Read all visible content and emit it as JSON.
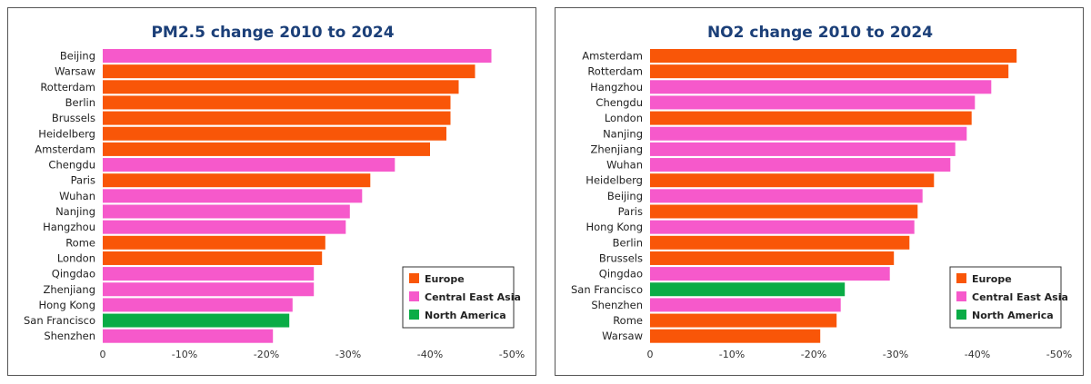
{
  "colors": {
    "Europe": "#f95608",
    "Central East Asia": "#f659cb",
    "North America": "#0aac46",
    "title": "#1b3f78"
  },
  "chart_data": [
    {
      "type": "bar",
      "title": "PM2.5 change 2010 to 2024",
      "xlim": [
        0,
        -50
      ],
      "xticks": [
        "0",
        "-10%",
        "-20%",
        "-30%",
        "-40%",
        "-50%"
      ],
      "legend": [
        "Europe",
        "Central East Asia",
        "North America"
      ],
      "legend_position": "bottom-right",
      "categories": [
        "Beijing",
        "Warsaw",
        "Rotterdam",
        "Berlin",
        "Brussels",
        "Heidelberg",
        "Amsterdam",
        "Chengdu",
        "Paris",
        "Wuhan",
        "Nanjing",
        "Hangzhou",
        "Rome",
        "London",
        "Qingdao",
        "Zhenjiang",
        "Hong Kong",
        "San Francisco",
        "Shenzhen"
      ],
      "regions": [
        "Central East Asia",
        "Europe",
        "Europe",
        "Europe",
        "Europe",
        "Europe",
        "Europe",
        "Central East Asia",
        "Europe",
        "Central East Asia",
        "Central East Asia",
        "Central East Asia",
        "Europe",
        "Europe",
        "Central East Asia",
        "Central East Asia",
        "Central East Asia",
        "North America",
        "Central East Asia"
      ],
      "values": [
        -47.5,
        -45.5,
        -43.5,
        -42.5,
        -42.5,
        -42,
        -40,
        -35.7,
        -32.7,
        -31.7,
        -30.2,
        -29.7,
        -27.2,
        -26.8,
        -25.8,
        -25.8,
        -23.2,
        -22.8,
        -20.8
      ]
    },
    {
      "type": "bar",
      "title": "NO2 change 2010 to 2024",
      "xlim": [
        0,
        -50
      ],
      "xticks": [
        "0",
        "-10%",
        "-20%",
        "-30%",
        "-40%",
        "-50%"
      ],
      "legend": [
        "Europe",
        "Central East Asia",
        "North America"
      ],
      "legend_position": "bottom-right",
      "categories": [
        "Amsterdam",
        "Rotterdam",
        "Hangzhou",
        "Chengdu",
        "London",
        "Nanjing",
        "Zhenjiang",
        "Wuhan",
        "Heidelberg",
        "Beijing",
        "Paris",
        "Hong Kong",
        "Berlin",
        "Brussels",
        "Qingdao",
        "San Francisco",
        "Shenzhen",
        "Rome",
        "Warsaw"
      ],
      "regions": [
        "Europe",
        "Europe",
        "Central East Asia",
        "Central East Asia",
        "Europe",
        "Central East Asia",
        "Central East Asia",
        "Central East Asia",
        "Europe",
        "Central East Asia",
        "Europe",
        "Central East Asia",
        "Europe",
        "Europe",
        "Central East Asia",
        "North America",
        "Central East Asia",
        "Europe",
        "Europe"
      ],
      "values": [
        -44.8,
        -43.8,
        -41.7,
        -39.7,
        -39.3,
        -38.7,
        -37.3,
        -36.7,
        -34.7,
        -33.3,
        -32.7,
        -32.3,
        -31.7,
        -29.8,
        -29.3,
        -23.8,
        -23.3,
        -22.8,
        -20.8
      ]
    }
  ]
}
